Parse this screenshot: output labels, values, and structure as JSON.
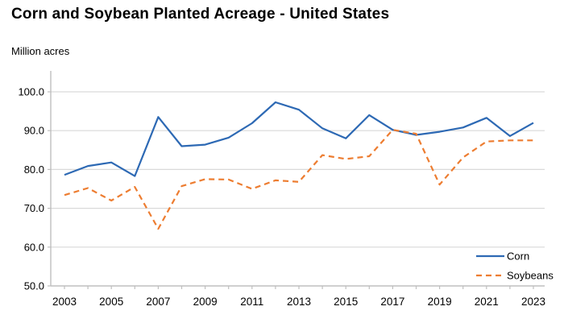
{
  "header": {
    "title": "Corn and Soybean Planted Acreage - United States",
    "subtitle": "Million acres"
  },
  "colors": {
    "corn_line": "#2d69b4",
    "soybeans_line": "#ed7d31",
    "gridline": "#d9d9d9",
    "axis": "#bfbfbf",
    "text": "#000000",
    "background": "#ffffff"
  },
  "chart_data": {
    "type": "line",
    "title": "Corn and Soybean Planted Acreage - United States",
    "ylabel": "Million acres",
    "xlabel": "",
    "x": [
      2003,
      2004,
      2005,
      2006,
      2007,
      2008,
      2009,
      2010,
      2011,
      2012,
      2013,
      2014,
      2015,
      2016,
      2017,
      2018,
      2019,
      2020,
      2021,
      2022,
      2023
    ],
    "x_tick_label_years": [
      2003,
      2005,
      2007,
      2009,
      2011,
      2013,
      2015,
      2017,
      2019,
      2021,
      2023
    ],
    "y_ticks": [
      50,
      60,
      70,
      80,
      90,
      100
    ],
    "y_tick_labels": [
      "50.0",
      "60.0",
      "70.0",
      "80.0",
      "90.0",
      "100.0"
    ],
    "ylim": [
      50,
      105.4
    ],
    "grid": "horizontal",
    "legend_position": "inside-bottom-right",
    "series": [
      {
        "name": "Corn",
        "color": "#2d69b4",
        "dash": "solid",
        "values": [
          78.6,
          80.9,
          81.8,
          78.3,
          93.5,
          86.0,
          86.4,
          88.2,
          91.9,
          97.3,
          95.4,
          90.6,
          88.0,
          94.0,
          90.2,
          88.9,
          89.7,
          90.8,
          93.3,
          88.6,
          92.0
        ]
      },
      {
        "name": "Soybeans",
        "color": "#ed7d31",
        "dash": "dashed",
        "values": [
          73.4,
          75.2,
          72.0,
          75.5,
          64.7,
          75.7,
          77.5,
          77.4,
          75.0,
          77.2,
          76.8,
          83.7,
          82.7,
          83.4,
          90.2,
          89.2,
          76.1,
          83.1,
          87.2,
          87.5,
          87.5
        ]
      }
    ]
  }
}
